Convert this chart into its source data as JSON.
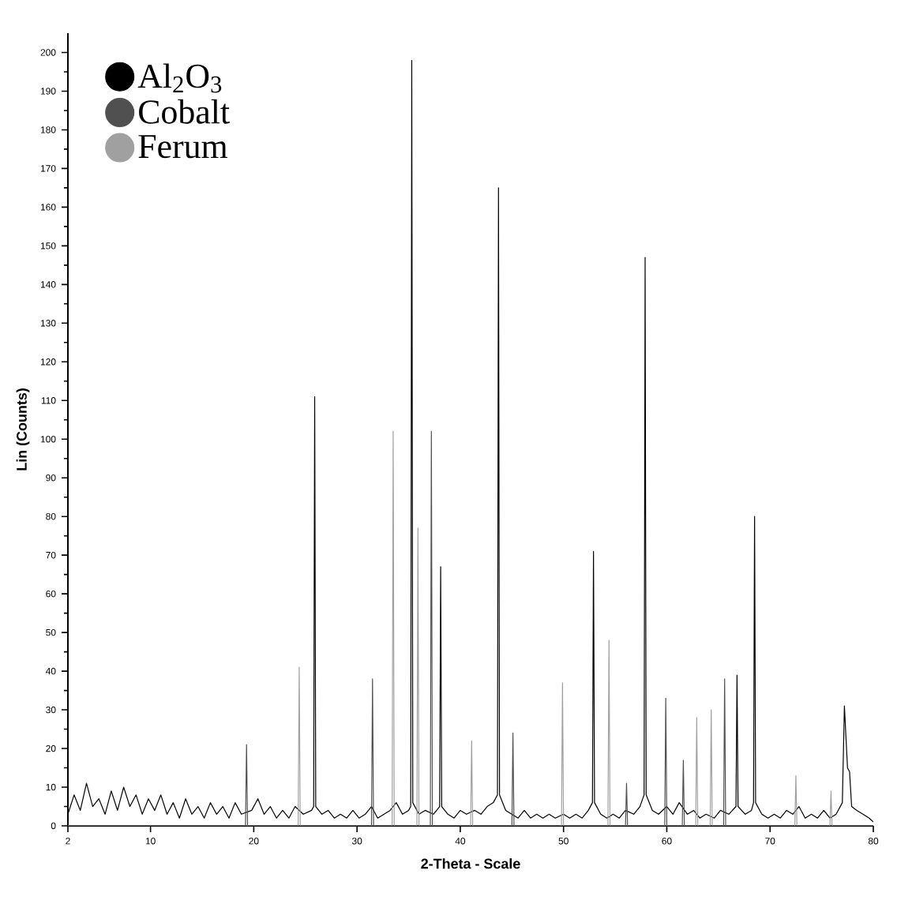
{
  "chart_data": {
    "type": "line",
    "xlabel": "2-Theta - Scale",
    "ylabel": "Lin (Counts)",
    "xlim": [
      2,
      80
    ],
    "ylim": [
      0,
      205
    ],
    "xticks": [
      2,
      10,
      20,
      30,
      40,
      50,
      60,
      70,
      80
    ],
    "yticks": [
      0,
      10,
      20,
      30,
      40,
      50,
      60,
      70,
      80,
      90,
      100,
      110,
      120,
      130,
      140,
      150,
      160,
      170,
      180,
      190,
      200
    ],
    "legend": "top left",
    "series": [
      {
        "name": "Al$_{2}$O$_{3}$",
        "color": "#000000",
        "x": [
          2.0,
          2.6,
          3.2,
          3.8,
          4.4,
          5.0,
          5.6,
          6.2,
          6.8,
          7.4,
          8.0,
          8.6,
          9.2,
          9.8,
          10.4,
          11.0,
          11.6,
          12.2,
          12.8,
          13.4,
          14.0,
          14.6,
          15.2,
          15.8,
          16.4,
          17.0,
          17.6,
          18.2,
          18.8,
          19.8,
          20.4,
          21.0,
          21.6,
          22.2,
          22.8,
          23.4,
          24.0,
          24.8,
          25.6,
          25.8,
          25.9,
          26.0,
          26.6,
          27.2,
          27.8,
          28.4,
          29.0,
          29.6,
          30.2,
          30.8,
          31.4,
          32.0,
          32.6,
          33.2,
          33.8,
          34.4,
          35.0,
          35.2,
          35.3,
          35.4,
          36.0,
          36.6,
          37.4,
          38.0,
          38.1,
          38.2,
          38.8,
          39.4,
          40.0,
          40.6,
          41.4,
          42.0,
          42.6,
          43.2,
          43.6,
          43.7,
          43.8,
          44.4,
          45.0,
          45.6,
          46.2,
          46.8,
          47.4,
          48.0,
          48.6,
          49.2,
          50.0,
          50.6,
          51.2,
          51.8,
          52.4,
          52.8,
          52.9,
          53.0,
          53.6,
          54.2,
          54.8,
          55.4,
          56.0,
          56.8,
          57.4,
          57.8,
          57.9,
          58.0,
          58.6,
          59.2,
          60.0,
          60.6,
          61.2,
          62.0,
          62.6,
          63.2,
          63.8,
          64.6,
          65.2,
          66.0,
          66.7,
          66.8,
          66.9,
          67.6,
          68.2,
          68.4,
          68.5,
          68.6,
          69.2,
          69.8,
          70.4,
          71.0,
          71.6,
          72.2,
          72.8,
          73.4,
          74.0,
          74.6,
          75.2,
          75.8,
          76.4,
          77.0,
          77.2,
          77.5,
          77.7,
          77.9,
          78.4,
          79.0,
          79.6,
          80.0
        ],
        "values": [
          3,
          8,
          4,
          11,
          5,
          7,
          3,
          9,
          4,
          10,
          5,
          8,
          3,
          7,
          4,
          8,
          3,
          6,
          2,
          7,
          3,
          5,
          2,
          6,
          3,
          5,
          2,
          6,
          3,
          4,
          7,
          3,
          5,
          2,
          4,
          2,
          5,
          3,
          4,
          5,
          111,
          5,
          3,
          4,
          2,
          3,
          2,
          4,
          2,
          3,
          5,
          2,
          3,
          4,
          6,
          3,
          4,
          5,
          198,
          6,
          3,
          4,
          3,
          5,
          67,
          5,
          3,
          2,
          4,
          3,
          4,
          3,
          5,
          6,
          8,
          165,
          8,
          4,
          3,
          2,
          4,
          2,
          3,
          2,
          3,
          2,
          3,
          2,
          3,
          2,
          4,
          6,
          71,
          6,
          3,
          2,
          3,
          2,
          4,
          3,
          5,
          8,
          147,
          8,
          4,
          3,
          5,
          3,
          6,
          3,
          4,
          2,
          3,
          2,
          4,
          3,
          5,
          39,
          5,
          3,
          4,
          6,
          80,
          6,
          3,
          2,
          3,
          2,
          4,
          3,
          5,
          2,
          3,
          2,
          4,
          2,
          3,
          6,
          31,
          15,
          14,
          5,
          4,
          3,
          2,
          1
        ]
      },
      {
        "name": "Cobalt",
        "color": "#505050",
        "x": [
          2,
          19.2,
          19.3,
          19.4,
          31.4,
          31.5,
          31.6,
          37.1,
          37.2,
          37.3,
          45.0,
          45.1,
          45.2,
          56.0,
          56.1,
          56.2,
          59.8,
          59.9,
          60.0,
          61.5,
          61.6,
          61.7,
          65.5,
          65.6,
          65.7,
          80
        ],
        "values": [
          0,
          0,
          21,
          0,
          0,
          38,
          0,
          0,
          102,
          0,
          0,
          24,
          0,
          0,
          11,
          0,
          0,
          33,
          0,
          0,
          17,
          0,
          0,
          38,
          0,
          0
        ]
      },
      {
        "name": "Ferum",
        "color": "#a0a0a0",
        "x": [
          2,
          24.3,
          24.4,
          24.5,
          33.4,
          33.5,
          33.6,
          35.8,
          35.9,
          36.0,
          41.0,
          41.1,
          41.2,
          49.8,
          49.9,
          50.0,
          54.3,
          54.4,
          54.5,
          62.8,
          62.9,
          63.0,
          64.2,
          64.3,
          64.4,
          72.4,
          72.5,
          72.6,
          75.8,
          75.9,
          76.0,
          80
        ],
        "values": [
          0,
          0,
          41,
          0,
          0,
          102,
          0,
          0,
          77,
          0,
          0,
          22,
          0,
          0,
          37,
          0,
          0,
          48,
          0,
          0,
          28,
          0,
          0,
          30,
          0,
          0,
          13,
          0,
          0,
          9,
          0,
          0
        ]
      }
    ]
  }
}
